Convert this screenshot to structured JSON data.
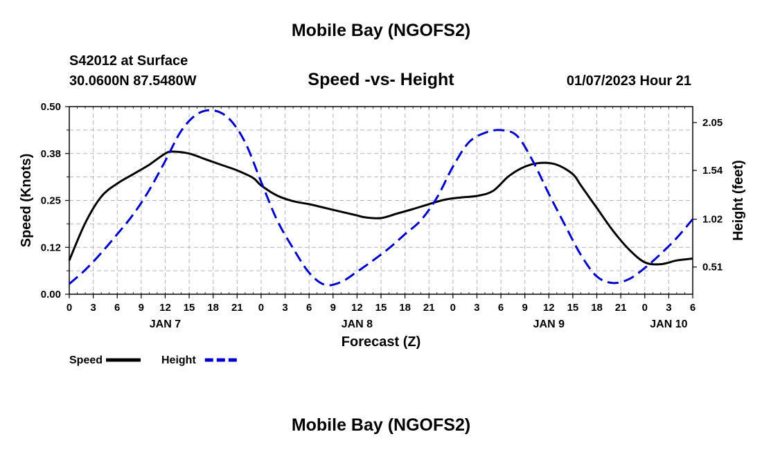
{
  "header": {
    "title": "Mobile Bay (NGOFS2)",
    "station": "S42012 at Surface",
    "coords": "30.0600N  87.5480W",
    "subtitle": "Speed -vs- Height",
    "datetime": "01/07/2023 Hour 21"
  },
  "footer": {
    "title": "Mobile Bay (NGOFS2)"
  },
  "chart_data": {
    "type": "line",
    "title": "Speed -vs- Height",
    "xlabel": "Forecast (Z)",
    "ylabel": "Speed (Knots)",
    "y2label": "Height (feet)",
    "x_unit": "hours since 2023-01-07 00Z",
    "xlim": [
      0,
      78
    ],
    "ylim": [
      0,
      0.5
    ],
    "y2lim": [
      0.22,
      2.22
    ],
    "x_ticks": [
      0,
      3,
      6,
      9,
      12,
      15,
      18,
      21,
      24,
      27,
      30,
      33,
      36,
      39,
      42,
      45,
      48,
      51,
      54,
      57,
      60,
      63,
      66,
      69,
      72,
      75,
      78
    ],
    "x_tick_labels": [
      "0",
      "3",
      "6",
      "9",
      "12",
      "15",
      "18",
      "21",
      "0",
      "3",
      "6",
      "9",
      "12",
      "15",
      "18",
      "21",
      "0",
      "3",
      "6",
      "9",
      "12",
      "15",
      "18",
      "21",
      "0",
      "3",
      "6"
    ],
    "day_labels": [
      {
        "x": 12,
        "label": "JAN 7"
      },
      {
        "x": 36,
        "label": "JAN 8"
      },
      {
        "x": 60,
        "label": "JAN 9"
      },
      {
        "x": 75,
        "label": "JAN 10"
      }
    ],
    "y_ticks": [
      0.0,
      0.125,
      0.25,
      0.375,
      0.5
    ],
    "y_tick_labels": [
      "0.00",
      "0.12",
      "0.25",
      "0.38",
      "0.50"
    ],
    "y2_ticks": [
      0.51,
      1.02,
      1.54,
      2.05
    ],
    "y2_tick_labels": [
      "0.51",
      "1.02",
      "1.54",
      "2.05"
    ],
    "grid": true,
    "series": [
      {
        "name": "Speed",
        "axis": "left",
        "color": "#000000",
        "style": "solid",
        "x": [
          0,
          2,
          4,
          6,
          8,
          10,
          12,
          13,
          15,
          17,
          19,
          21,
          23,
          24,
          26,
          28,
          30,
          32,
          34,
          36,
          37,
          39,
          41,
          43,
          45,
          47,
          49,
          51,
          53,
          55,
          57,
          59,
          61,
          63,
          64,
          66,
          68,
          70,
          72,
          74,
          76,
          78
        ],
        "y": [
          0.09,
          0.19,
          0.26,
          0.295,
          0.32,
          0.345,
          0.375,
          0.38,
          0.375,
          0.36,
          0.345,
          0.33,
          0.31,
          0.29,
          0.263,
          0.248,
          0.24,
          0.23,
          0.22,
          0.21,
          0.205,
          0.203,
          0.215,
          0.227,
          0.24,
          0.252,
          0.258,
          0.262,
          0.275,
          0.315,
          0.34,
          0.35,
          0.345,
          0.32,
          0.29,
          0.23,
          0.17,
          0.12,
          0.085,
          0.08,
          0.09,
          0.095
        ]
      },
      {
        "name": "Height",
        "axis": "right",
        "color": "#0000cc",
        "style": "dashed",
        "x": [
          0,
          2,
          4,
          6,
          8,
          10,
          12,
          14,
          16,
          18,
          20,
          22,
          24,
          26,
          28,
          30,
          32,
          34,
          36,
          38,
          40,
          42,
          44,
          46,
          48,
          50,
          52,
          54,
          56,
          58,
          60,
          62,
          64,
          66,
          68,
          70,
          72,
          74,
          76,
          78
        ],
        "y": [
          0.33,
          0.48,
          0.66,
          0.86,
          1.07,
          1.33,
          1.64,
          1.96,
          2.14,
          2.18,
          2.09,
          1.84,
          1.42,
          1.01,
          0.71,
          0.45,
          0.32,
          0.35,
          0.46,
          0.58,
          0.71,
          0.86,
          1.01,
          1.25,
          1.58,
          1.84,
          1.94,
          1.97,
          1.91,
          1.64,
          1.29,
          0.96,
          0.64,
          0.41,
          0.34,
          0.38,
          0.5,
          0.65,
          0.82,
          1.02
        ]
      }
    ],
    "legend": [
      {
        "label": "Speed",
        "color": "#000000",
        "style": "solid"
      },
      {
        "label": "Height",
        "color": "#0000cc",
        "style": "dashed"
      }
    ],
    "legend_position": "bottom-left"
  }
}
